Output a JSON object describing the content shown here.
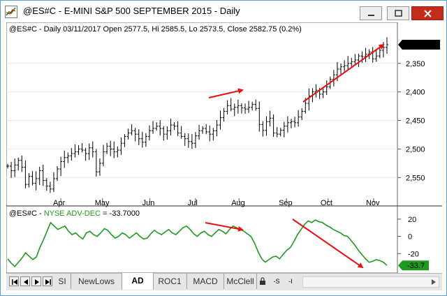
{
  "window": {
    "title": "@ES#C - E-MINI S&P 500 SEPTEMBER 2015 - Daily",
    "buttons": {
      "minimize": "minimize-icon",
      "maximize": "maximize-icon",
      "close": "close-icon"
    }
  },
  "price_chart": {
    "info": "@ES#C - Daily 03/11/2017 Open 2577.5, Hi 2585.5, Lo 2573.5, Close 2582.75 (0.2%)",
    "last_price_label": "2,582.75",
    "y_ticks": [
      "2,550",
      "2,500",
      "2,450",
      "2,400",
      "2,350"
    ],
    "x_ticks": [
      "Apr",
      "May",
      "Jun",
      "Jul",
      "Aug",
      "Sep",
      "Oct",
      "Nov"
    ]
  },
  "indicator": {
    "label_prefix": "@ES#C - ",
    "label_name": "NYSE ADV-DEC",
    "label_value": " = -33.7000",
    "last_value_label": "-33.7",
    "y_ticks": [
      "20",
      "0",
      "-20"
    ]
  },
  "colors": {
    "price_bars": "#000000",
    "indicator_line": "#1f9a1f",
    "annotation_arrows": "#e81010",
    "last_price_badge": "#000000",
    "last_indicator_badge": "#1f9a1f"
  },
  "tabs": {
    "items": [
      {
        "label": "SI",
        "active": false
      },
      {
        "label": "NewLows",
        "active": false
      },
      {
        "label": "AD",
        "active": true
      },
      {
        "label": "ROC1",
        "active": false
      },
      {
        "label": "MACD",
        "active": false
      },
      {
        "label": "McClell",
        "active": false
      }
    ],
    "small_buttons": [
      "lock-icon",
      "-S",
      "-I"
    ]
  },
  "chart_data": [
    {
      "type": "bar",
      "subtype": "ohlc",
      "x_ticks": [
        "Apr",
        "May",
        "Jun",
        "Jul",
        "Aug",
        "Sep",
        "Oct",
        "Nov"
      ],
      "ylim": [
        2310,
        2595
      ],
      "y_ticks": [
        2350,
        2400,
        2450,
        2500,
        2550
      ],
      "close_path": [
        2370,
        2362,
        2372,
        2380,
        2368,
        2338,
        2352,
        2340,
        2348,
        2362,
        2345,
        2335,
        2330,
        2348,
        2365,
        2378,
        2385,
        2388,
        2392,
        2395,
        2400,
        2398,
        2392,
        2402,
        2395,
        2360,
        2375,
        2395,
        2405,
        2400,
        2395,
        2398,
        2410,
        2422,
        2428,
        2432,
        2426,
        2418,
        2412,
        2422,
        2432,
        2436,
        2440,
        2436,
        2426,
        2432,
        2442,
        2440,
        2428,
        2422,
        2418,
        2413,
        2410,
        2423,
        2432,
        2436,
        2430,
        2426,
        2432,
        2442,
        2455,
        2466,
        2476,
        2470,
        2473,
        2476,
        2472,
        2470,
        2473,
        2478,
        2471,
        2443,
        2433,
        2448,
        2454,
        2428,
        2426,
        2433,
        2440,
        2446,
        2448,
        2446,
        2456,
        2466,
        2480,
        2493,
        2500,
        2503,
        2496,
        2500,
        2509,
        2522,
        2530,
        2540,
        2544,
        2546,
        2550,
        2553,
        2556,
        2563,
        2562,
        2566,
        2570,
        2558,
        2563,
        2573,
        2578,
        2582.75
      ],
      "last_close": 2582.75
    },
    {
      "type": "line",
      "name": "NYSE ADV-DEC",
      "ylim": [
        -40,
        28
      ],
      "y_ticks": [
        20,
        0,
        -20
      ],
      "values": [
        -26,
        -31,
        -35,
        -30,
        -25,
        -19,
        -23,
        -27,
        -24,
        -13,
        -4,
        6,
        16,
        12,
        8,
        10,
        12,
        6,
        2,
        4,
        0,
        -3,
        4,
        6,
        2,
        0,
        4,
        9,
        7,
        2,
        -2,
        0,
        4,
        2,
        -2,
        1,
        4,
        0,
        -3,
        -2,
        3,
        7,
        4,
        2,
        5,
        8,
        4,
        2,
        6,
        10,
        12,
        8,
        3,
        0,
        4,
        6,
        2,
        0,
        4,
        8,
        6,
        3,
        8,
        12,
        10,
        8,
        6,
        3,
        0,
        -8,
        -18,
        -26,
        -30,
        -27,
        -24,
        -23,
        -26,
        -21,
        -16,
        -13,
        -6,
        2,
        8,
        14,
        18,
        16,
        19,
        17,
        16,
        13,
        11,
        8,
        6,
        4,
        1,
        0,
        -5,
        -10,
        -16,
        -21,
        -26,
        -30,
        -29,
        -27,
        -28,
        -30,
        -33.7
      ],
      "last_value": -33.7
    }
  ]
}
